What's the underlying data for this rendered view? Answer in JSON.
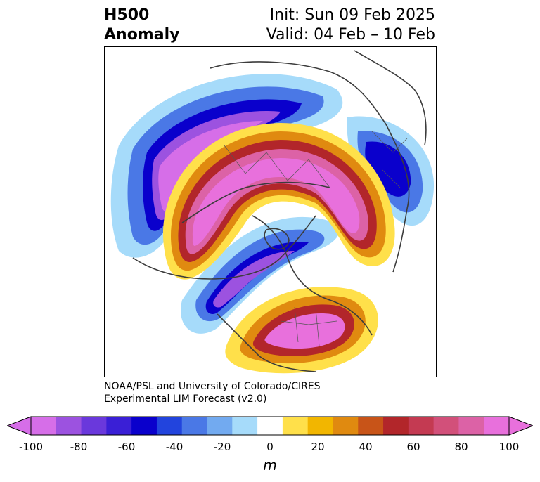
{
  "title": {
    "left_line1": "H500",
    "left_line2": "Anomaly",
    "right_line1": "Init: Sun 09 Feb 2025",
    "right_line2": "Valid: 04 Feb – 10 Feb"
  },
  "credits": {
    "line1": "NOAA/PSL and University of Colorado/CIRES",
    "line2": "Experimental LIM Forecast (v2.0)"
  },
  "colorbar": {
    "units": "m",
    "ticks": [
      "-100",
      "-80",
      "-60",
      "-40",
      "-20",
      "0",
      "20",
      "40",
      "60",
      "80",
      "100"
    ],
    "levels": [
      -100,
      -90,
      -80,
      -70,
      -60,
      -50,
      -40,
      -30,
      -20,
      -10,
      10,
      20,
      30,
      40,
      50,
      60,
      70,
      80,
      90,
      100
    ],
    "colors": [
      "#d66ee8",
      "#9c52e0",
      "#6a38dc",
      "#3a1fd6",
      "#0a00cc",
      "#2244dd",
      "#4a78e6",
      "#72aaf0",
      "#a6dbfa",
      "#ffffff",
      "#ffe04a",
      "#f2b600",
      "#e08a10",
      "#c85418",
      "#b2262a",
      "#c43a52",
      "#d2507a",
      "#dc62a6",
      "#e870dc"
    ],
    "extend_low_color": "#d66ee8",
    "extend_high_color": "#e870dc"
  },
  "map": {
    "projection": "north-polar-stereographic",
    "field": "500 hPa geopotential height anomaly"
  }
}
